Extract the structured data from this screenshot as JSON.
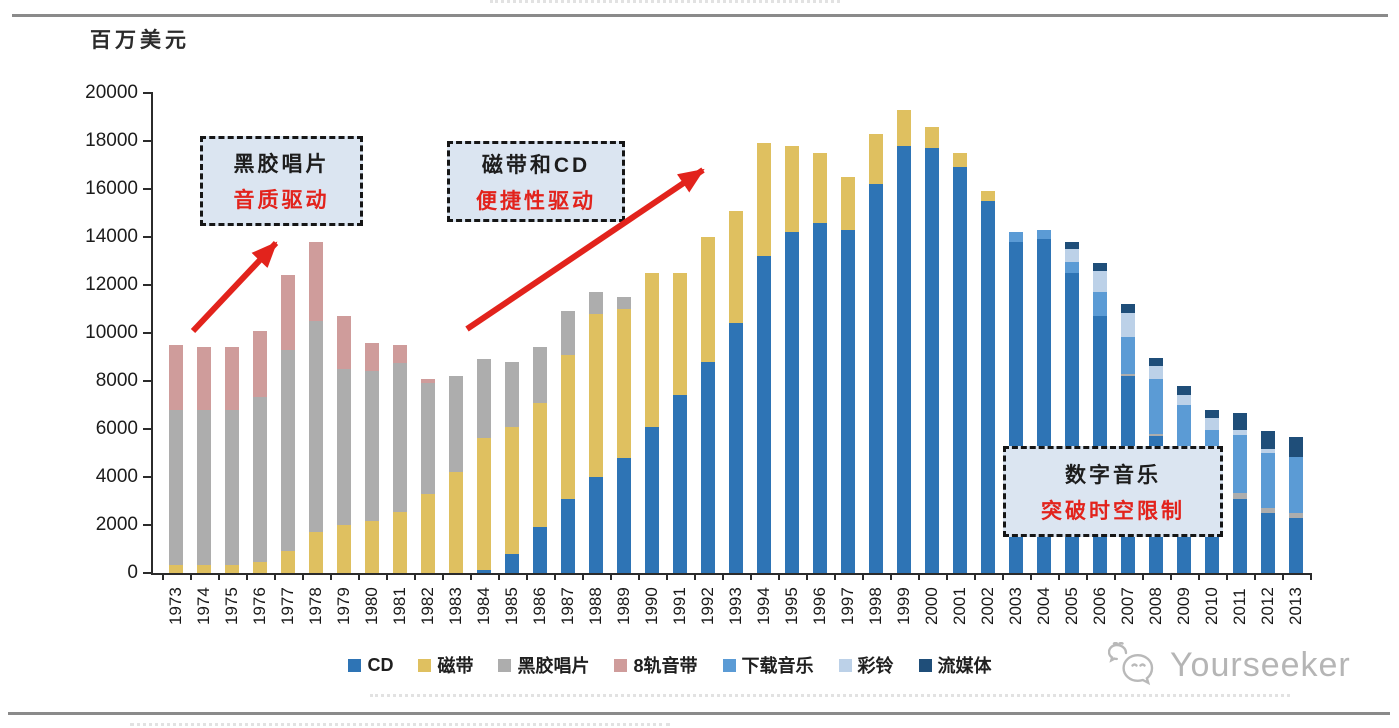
{
  "page": {
    "unit_label": "百万美元"
  },
  "watermark": {
    "name": "Yourseeker",
    "icon": "wechat-icon"
  },
  "annotations": {
    "vinyl": {
      "line1": "黑胶唱片",
      "line2": "音质驱动"
    },
    "cassette_cd": {
      "line1": "磁带和CD",
      "line2": "便捷性驱动"
    },
    "digital": {
      "line1": "数字音乐",
      "line2": "突破时空限制"
    }
  },
  "colors": {
    "accent_red": "#e2231c",
    "annotation_fill": "#dbe5f1",
    "axis": "#2b2b2b",
    "divider_gray": "#8a8a8a",
    "watermark_gray": "#b5b5b5"
  },
  "chart_data": {
    "type": "bar",
    "stacked": true,
    "title": "",
    "xlabel": "",
    "ylabel": "百万美元",
    "ylim": [
      0,
      20000
    ],
    "ytick_interval": 2000,
    "grid": false,
    "legend_position": "bottom",
    "categories": [
      "1973",
      "1974",
      "1975",
      "1976",
      "1977",
      "1978",
      "1979",
      "1980",
      "1981",
      "1982",
      "1983",
      "1984",
      "1985",
      "1986",
      "1987",
      "1988",
      "1989",
      "1990",
      "1991",
      "1992",
      "1993",
      "1994",
      "1995",
      "1996",
      "1997",
      "1998",
      "1999",
      "2000",
      "2001",
      "2002",
      "2003",
      "2004",
      "2005",
      "2006",
      "2007",
      "2008",
      "2009",
      "2010",
      "2011",
      "2012",
      "2013"
    ],
    "series": [
      {
        "id": "cd",
        "name": "CD",
        "color": "#2e74b5",
        "values": [
          0,
          0,
          0,
          0,
          0,
          0,
          0,
          0,
          0,
          0,
          0,
          120,
          800,
          1900,
          3100,
          4000,
          4800,
          6100,
          7400,
          8800,
          10400,
          13200,
          14200,
          14600,
          14300,
          16200,
          17800,
          17700,
          16900,
          15500,
          13800,
          13900,
          12500,
          10700,
          8200,
          5700,
          4200,
          3300,
          3100,
          2500,
          2300
        ]
      },
      {
        "id": "cassette",
        "name": "磁带",
        "color": "#dfc060",
        "values": [
          350,
          350,
          350,
          450,
          900,
          1700,
          2000,
          2150,
          2550,
          3300,
          4200,
          5500,
          5300,
          5200,
          6000,
          6800,
          6200,
          6400,
          5100,
          5200,
          4700,
          4700,
          3600,
          2900,
          2200,
          2100,
          1500,
          900,
          600,
          400,
          0,
          0,
          0,
          0,
          0,
          0,
          0,
          0,
          0,
          0,
          0
        ]
      },
      {
        "id": "vinyl",
        "name": "黑胶唱片",
        "color": "#adadad",
        "values": [
          6450,
          6450,
          6450,
          6900,
          8400,
          8800,
          6500,
          6250,
          6200,
          4600,
          4000,
          3300,
          2700,
          2300,
          1800,
          900,
          500,
          0,
          0,
          0,
          0,
          0,
          0,
          0,
          0,
          0,
          0,
          0,
          0,
          0,
          0,
          0,
          0,
          0,
          100,
          100,
          100,
          100,
          250,
          200,
          200
        ]
      },
      {
        "id": "8track",
        "name": "8轨音带",
        "color": "#cf9c9b",
        "values": [
          2700,
          2600,
          2600,
          2750,
          3100,
          3300,
          2200,
          1200,
          750,
          200,
          0,
          0,
          0,
          0,
          0,
          0,
          0,
          0,
          0,
          0,
          0,
          0,
          0,
          0,
          0,
          0,
          0,
          0,
          0,
          0,
          0,
          0,
          0,
          0,
          0,
          0,
          0,
          0,
          0,
          0,
          0
        ]
      },
      {
        "id": "download",
        "name": "下载音乐",
        "color": "#5b9bd5",
        "values": [
          0,
          0,
          0,
          0,
          0,
          0,
          0,
          0,
          0,
          0,
          0,
          0,
          0,
          0,
          0,
          0,
          0,
          0,
          0,
          0,
          0,
          0,
          0,
          0,
          0,
          0,
          0,
          0,
          0,
          0,
          400,
          400,
          470,
          1000,
          1550,
          2300,
          2700,
          2550,
          2400,
          2300,
          2350
        ]
      },
      {
        "id": "ringtone",
        "name": "彩铃",
        "color": "#bcd1e8",
        "values": [
          0,
          0,
          0,
          0,
          0,
          0,
          0,
          0,
          0,
          0,
          0,
          0,
          0,
          0,
          0,
          0,
          0,
          0,
          0,
          0,
          0,
          0,
          0,
          0,
          0,
          0,
          0,
          0,
          0,
          0,
          0,
          0,
          530,
          870,
          1000,
          520,
          400,
          500,
          200,
          150,
          0
        ]
      },
      {
        "id": "streaming",
        "name": "流媒体",
        "color": "#1f4e79",
        "values": [
          0,
          0,
          0,
          0,
          0,
          0,
          0,
          0,
          0,
          0,
          0,
          0,
          0,
          0,
          0,
          0,
          0,
          0,
          0,
          0,
          0,
          0,
          0,
          0,
          0,
          0,
          0,
          0,
          0,
          0,
          0,
          0,
          300,
          330,
          360,
          320,
          400,
          330,
          700,
          750,
          830
        ]
      }
    ]
  }
}
